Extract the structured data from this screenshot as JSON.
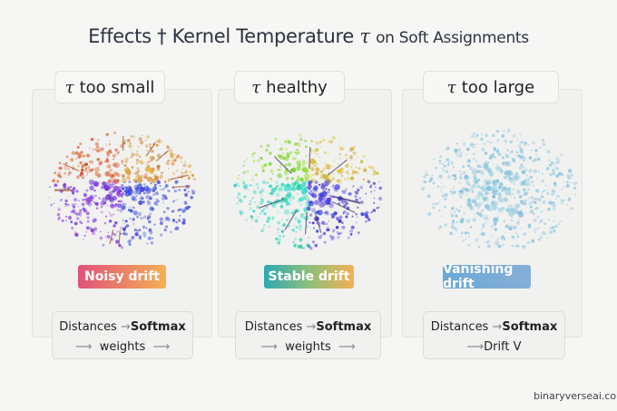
{
  "title": {
    "main": "Effects † Kernel Temperature",
    "symbol": "τ",
    "rest": "on Soft Assignments"
  },
  "panels": [
    {
      "tau": "τ",
      "label": "too small",
      "badge": "Noisy drift",
      "badge_colors": [
        "#e0527a",
        "#f5b055"
      ],
      "flow_from": "Distances",
      "flow_to": "Softmax",
      "flow_out": "weights",
      "cloud": "multicolor-spread-arrows"
    },
    {
      "tau": "τ",
      "label": "healthy",
      "badge": "Stable drift",
      "badge_colors": [
        "#2fa8b0",
        "#f5b055"
      ],
      "flow_from": "Distances",
      "flow_to": "Softmax",
      "flow_out": "weights",
      "cloud": "multicolor-converging-arrows"
    },
    {
      "tau": "τ",
      "label": "too large",
      "badge": "Vanishing drift",
      "badge_colors": [
        "#6aa9d8",
        "#86aed6"
      ],
      "flow_from": "Distances",
      "flow_to": "Softmax",
      "flow_out": "Drift V",
      "cloud": "pale-blue-diffuse"
    }
  ],
  "arrow": "→",
  "long_arrow": "⟶",
  "footer": "binaryverseai.com"
}
